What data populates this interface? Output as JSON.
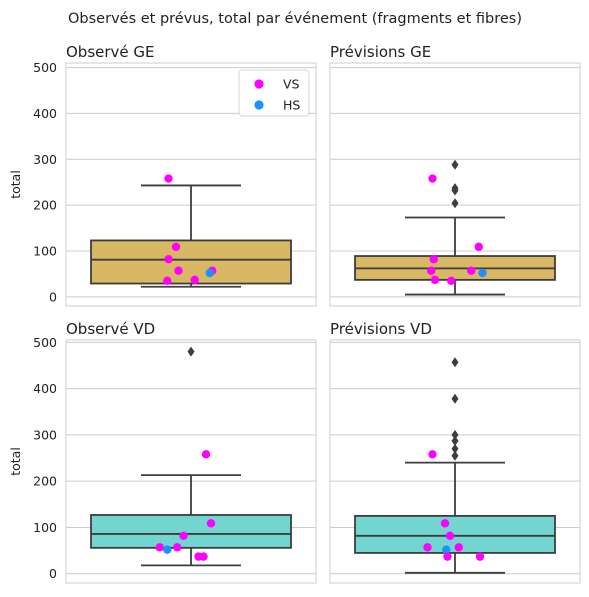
{
  "figure_title": "Observés et prévus, total par événement (fragments et fibres)",
  "colors": {
    "VS": "#ff00ff",
    "HS": "#1e90ff",
    "box_ge": "#d8b765",
    "box_vd": "#72d5cf",
    "box_line": "#3d3d3d",
    "grid": "#cccccc",
    "frame": "#cccccc"
  },
  "chart_data": [
    {
      "type": "box",
      "title": "Observé GE",
      "ylabel": "total",
      "ylim": [
        -20,
        510
      ],
      "yticks": [
        "0",
        "100",
        "200",
        "300",
        "400",
        "500"
      ],
      "box_color": "box_ge",
      "box": {
        "whisker_low": 22,
        "q1": 29,
        "median": 81,
        "q3": 123,
        "whisker_high": 243
      },
      "fliers": [],
      "points": [
        {
          "series": "VS",
          "x": -0.18,
          "y": 258
        },
        {
          "series": "VS",
          "x": -0.12,
          "y": 109
        },
        {
          "series": "VS",
          "x": -0.18,
          "y": 82
        },
        {
          "series": "VS",
          "x": -0.1,
          "y": 57
        },
        {
          "series": "VS",
          "x": 0.17,
          "y": 57
        },
        {
          "series": "HS",
          "x": 0.15,
          "y": 52
        },
        {
          "series": "VS",
          "x": -0.19,
          "y": 35
        },
        {
          "series": "VS",
          "x": 0.03,
          "y": 37
        }
      ],
      "legend": {
        "position": "top-right",
        "entries": [
          {
            "label": "VS",
            "series": "VS"
          },
          {
            "label": "HS",
            "series": "HS"
          }
        ]
      }
    },
    {
      "type": "box",
      "title": "Prévisions GE",
      "ylabel": "",
      "ylim": [
        -20,
        510
      ],
      "yticks": [],
      "box_color": "box_ge",
      "box": {
        "whisker_low": 5,
        "q1": 37,
        "median": 62,
        "q3": 89,
        "whisker_high": 173
      },
      "fliers": [
        288,
        237,
        232,
        204
      ],
      "points": [
        {
          "series": "VS",
          "x": -0.18,
          "y": 258
        },
        {
          "series": "VS",
          "x": 0.19,
          "y": 109
        },
        {
          "series": "VS",
          "x": -0.17,
          "y": 82
        },
        {
          "series": "VS",
          "x": -0.19,
          "y": 57
        },
        {
          "series": "VS",
          "x": 0.13,
          "y": 57
        },
        {
          "series": "HS",
          "x": 0.22,
          "y": 52
        },
        {
          "series": "VS",
          "x": -0.16,
          "y": 37
        },
        {
          "series": "VS",
          "x": -0.03,
          "y": 35
        }
      ],
      "legend": null
    },
    {
      "type": "box",
      "title": "Observé VD",
      "ylabel": "total",
      "ylim": [
        -20,
        505
      ],
      "yticks": [
        "0",
        "100",
        "200",
        "300",
        "400",
        "500"
      ],
      "box_color": "box_vd",
      "box": {
        "whisker_low": 18,
        "q1": 56,
        "median": 86,
        "q3": 127,
        "whisker_high": 213
      },
      "fliers": [
        480
      ],
      "points": [
        {
          "series": "VS",
          "x": 0.12,
          "y": 258
        },
        {
          "series": "VS",
          "x": 0.16,
          "y": 109
        },
        {
          "series": "VS",
          "x": -0.06,
          "y": 82
        },
        {
          "series": "VS",
          "x": -0.25,
          "y": 57
        },
        {
          "series": "VS",
          "x": -0.11,
          "y": 57
        },
        {
          "series": "HS",
          "x": -0.19,
          "y": 52
        },
        {
          "series": "VS",
          "x": 0.06,
          "y": 37
        },
        {
          "series": "VS",
          "x": 0.1,
          "y": 37
        }
      ],
      "legend": null
    },
    {
      "type": "box",
      "title": "Prévisions VD",
      "ylabel": "",
      "ylim": [
        -20,
        505
      ],
      "yticks": [],
      "box_color": "box_vd",
      "box": {
        "whisker_low": 2,
        "q1": 45,
        "median": 82,
        "q3": 125,
        "whisker_high": 240
      },
      "fliers": [
        457,
        378,
        300,
        287,
        270,
        255
      ],
      "points": [
        {
          "series": "VS",
          "x": -0.18,
          "y": 258
        },
        {
          "series": "VS",
          "x": -0.08,
          "y": 109
        },
        {
          "series": "VS",
          "x": -0.04,
          "y": 82
        },
        {
          "series": "VS",
          "x": -0.22,
          "y": 57
        },
        {
          "series": "VS",
          "x": 0.03,
          "y": 57
        },
        {
          "series": "HS",
          "x": -0.07,
          "y": 52
        },
        {
          "series": "VS",
          "x": -0.06,
          "y": 37
        },
        {
          "series": "VS",
          "x": 0.2,
          "y": 37
        }
      ],
      "legend": null
    }
  ]
}
